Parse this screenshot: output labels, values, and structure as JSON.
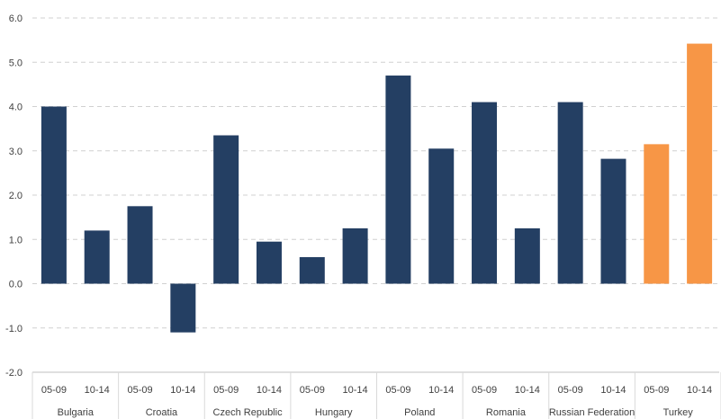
{
  "chart_data": {
    "type": "bar",
    "title": "",
    "xlabel": "",
    "ylabel": "",
    "ylim": [
      -2.0,
      6.0
    ],
    "yticks": [
      "6.0",
      "5.0",
      "4.0",
      "3.0",
      "2.0",
      "1.0",
      "0.0",
      "-1.0",
      "-2.0"
    ],
    "ytick_values": [
      6,
      5,
      4,
      3,
      2,
      1,
      0,
      -1,
      -2
    ],
    "grid": true,
    "legend": "none",
    "colors": {
      "default": "#243f63",
      "highlight": "#f79646"
    },
    "groups": [
      {
        "name": "Bulgaria",
        "periods": [
          "05-09",
          "10-14"
        ],
        "values": [
          4.0,
          1.2
        ],
        "highlight": false
      },
      {
        "name": "Croatia",
        "periods": [
          "05-09",
          "10-14"
        ],
        "values": [
          1.75,
          -1.1
        ],
        "highlight": false
      },
      {
        "name": "Czech Republic",
        "periods": [
          "05-09",
          "10-14"
        ],
        "values": [
          3.35,
          0.95
        ],
        "highlight": false
      },
      {
        "name": "Hungary",
        "periods": [
          "05-09",
          "10-14"
        ],
        "values": [
          0.6,
          1.25
        ],
        "highlight": false
      },
      {
        "name": "Poland",
        "periods": [
          "05-09",
          "10-14"
        ],
        "values": [
          4.7,
          3.05
        ],
        "highlight": false
      },
      {
        "name": "Romania",
        "periods": [
          "05-09",
          "10-14"
        ],
        "values": [
          4.1,
          1.25
        ],
        "highlight": false
      },
      {
        "name": "Russian Federation",
        "periods": [
          "05-09",
          "10-14"
        ],
        "values": [
          4.1,
          2.82
        ],
        "highlight": false
      },
      {
        "name": "Turkey",
        "periods": [
          "05-09",
          "10-14"
        ],
        "values": [
          3.15,
          5.42
        ],
        "highlight": true
      }
    ]
  }
}
